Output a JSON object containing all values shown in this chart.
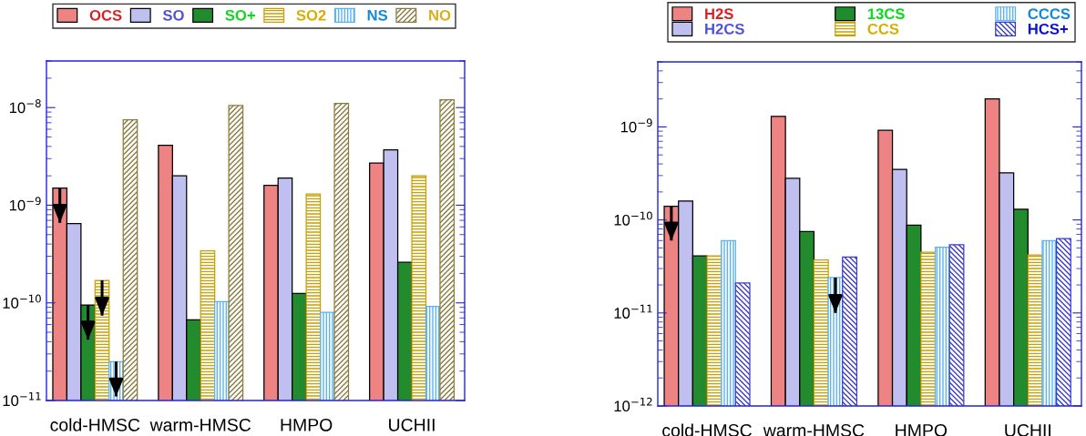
{
  "chart_data": [
    {
      "type": "bar",
      "categories": [
        "cold-HMSC",
        "warm-HMSC",
        "HMPO",
        "UCHII"
      ],
      "log": "y",
      "ylim": [
        1e-11,
        3e-08
      ],
      "yticks": [
        {
          "value": 1e-11,
          "label": "10$^{−11}$"
        },
        {
          "value": 1e-10,
          "label": "10$^{−10}$"
        },
        {
          "value": 1e-09,
          "label": "10$^{−9}$"
        },
        {
          "value": 1e-08,
          "label": "10$^{−8}$"
        }
      ],
      "legend": "top",
      "grid": false,
      "series": [
        {
          "name": "OCS",
          "color": "#ee8383",
          "values": [
            1.5e-09,
            4.1e-09,
            1.6e-09,
            2.7e-09
          ],
          "errors": [
            [
              6.6e-10,
              1.5e-09
            ],
            null,
            null,
            null
          ]
        },
        {
          "name": "SO",
          "color": "#bfbff0",
          "values": [
            6.5e-10,
            2e-09,
            1.9e-09,
            3.7e-09
          ]
        },
        {
          "name": "SO+",
          "color": "#228b2d",
          "values": [
            9.5e-11,
            6.7e-11,
            1.25e-10,
            2.6e-10
          ],
          "errors": [
            [
              4.2e-11,
              9.5e-11
            ],
            null,
            null,
            null
          ]
        },
        {
          "name": "SO2",
          "color": "#c8a000",
          "values": [
            1.7e-10,
            3.4e-10,
            1.3e-09,
            2e-09
          ],
          "errors": [
            [
              7.4e-11,
              1.7e-10
            ],
            null,
            null,
            null
          ]
        },
        {
          "name": "NS",
          "color": "#5ab4f0",
          "values": [
            2.5e-11,
            1.03e-10,
            8e-11,
            9.2e-11
          ],
          "errors": [
            [
              1.1e-11,
              2.5e-11
            ],
            null,
            null,
            null
          ]
        },
        {
          "name": "NO",
          "color": "#8b7a3c",
          "values": [
            7.5e-09,
            1.05e-08,
            1.1e-08,
            1.2e-08
          ]
        }
      ]
    },
    {
      "type": "bar",
      "categories": [
        "cold-HMSC",
        "warm-HMSC",
        "HMPO",
        "UCHII"
      ],
      "log": "y",
      "ylim": [
        1e-12,
        5e-09
      ],
      "yticks": [
        {
          "value": 1e-12,
          "label": "10$^{−12}$"
        },
        {
          "value": 1e-11,
          "label": "10$^{−11}$"
        },
        {
          "value": 1e-10,
          "label": "10$^{−10}$"
        },
        {
          "value": 1e-09,
          "label": "10$^{−9}$"
        }
      ],
      "legend": "top",
      "grid": false,
      "series": [
        {
          "name": "H2S",
          "color": "#ee8383",
          "values": [
            1.4e-10,
            1.3e-09,
            9.2e-10,
            2e-09
          ],
          "errors": [
            [
              6e-11,
              1.4e-10
            ],
            null,
            null,
            null
          ]
        },
        {
          "name": "H2CS",
          "color": "#bfbff0",
          "values": [
            1.6e-10,
            2.8e-10,
            3.5e-10,
            3.2e-10
          ]
        },
        {
          "name": "13CS",
          "color": "#228b2d",
          "values": [
            4.1e-11,
            7.5e-11,
            8.8e-11,
            1.3e-10
          ]
        },
        {
          "name": "CCS",
          "color": "#c8a000",
          "values": [
            4.1e-11,
            3.7e-11,
            4.5e-11,
            4.2e-11
          ]
        },
        {
          "name": "CCCS",
          "color": "#5ab4f0",
          "values": [
            6e-11,
            2.4e-11,
            5.1e-11,
            6e-11
          ],
          "errors": [
            null,
            [
              1e-11,
              2.4e-11
            ],
            null,
            null
          ]
        },
        {
          "name": "HCS+",
          "color": "#3c3ccc",
          "values": [
            2.1e-11,
            4e-11,
            5.4e-11,
            6.3e-11
          ]
        }
      ]
    }
  ]
}
